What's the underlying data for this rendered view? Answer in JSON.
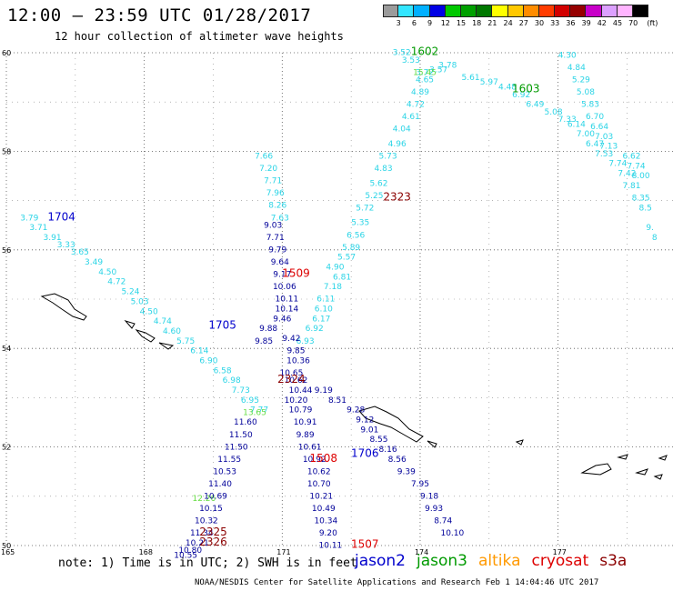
{
  "header": {
    "title": "12:00 – 23:59 UTC 01/28/2017",
    "subtitle": "12 hour collection of altimeter wave heights"
  },
  "color_scale": {
    "unit": "(ft)",
    "labels": [
      "3",
      "6",
      "9",
      "12",
      "15",
      "18",
      "21",
      "24",
      "27",
      "30",
      "33",
      "36",
      "39",
      "42",
      "45",
      "70"
    ],
    "colors": [
      "#9b9b9b",
      "#33e6ff",
      "#00b0ff",
      "#0000e6",
      "#00c800",
      "#00a000",
      "#007800",
      "#ffff00",
      "#ffc800",
      "#ff8c00",
      "#ff3c00",
      "#d20000",
      "#960000",
      "#c800c8",
      "#dca0ff",
      "#ffb4ff",
      "#000000"
    ]
  },
  "map": {
    "lat_labels": [
      "60",
      "58",
      "56",
      "54",
      "52",
      "50"
    ],
    "lon_labels": [
      "165",
      "168",
      "171",
      "174",
      "177"
    ]
  },
  "chart_data": {
    "type": "scatter",
    "title": "12:00 – 23:59 UTC 01/28/2017",
    "xlabel": "",
    "ylabel": "",
    "xlim": [
      165,
      179.5
    ],
    "ylim": [
      50,
      60
    ],
    "pass_labels": [
      {
        "id": "1602",
        "lon": 174.1,
        "lat": 59.95,
        "color": "#009a00"
      },
      {
        "id": "1603",
        "lon": 176.3,
        "lat": 59.2,
        "color": "#009a00"
      },
      {
        "id": "1704",
        "lon": 166.2,
        "lat": 56.6,
        "color": "#0000cc"
      },
      {
        "id": "1705",
        "lon": 169.7,
        "lat": 54.4,
        "color": "#0000cc"
      },
      {
        "id": "1706",
        "lon": 172.8,
        "lat": 51.8,
        "color": "#0000cc"
      },
      {
        "id": "1507",
        "lon": 172.8,
        "lat": 49.95,
        "color": "#dd0000"
      },
      {
        "id": "1508",
        "lon": 171.9,
        "lat": 51.7,
        "color": "#dd0000"
      },
      {
        "id": "1509",
        "lon": 171.3,
        "lat": 55.45,
        "color": "#dd0000"
      },
      {
        "id": "2323",
        "lon": 173.5,
        "lat": 57.0,
        "color": "#8b0000"
      },
      {
        "id": "2324",
        "lon": 171.2,
        "lat": 53.3,
        "color": "#8b0000"
      },
      {
        "id": "2325",
        "lon": 169.5,
        "lat": 50.2,
        "color": "#8b0000"
      },
      {
        "id": "2326",
        "lon": 169.5,
        "lat": 50.0,
        "color": "#8b0000"
      }
    ],
    "tracks": [
      {
        "name": "cyan-ne",
        "color": "#2bd4e6",
        "points": [
          [
            172.3,
            55.4,
            "6.81"
          ],
          [
            172.15,
            55.6,
            "4.90"
          ],
          [
            172.1,
            55.2,
            "7.18"
          ],
          [
            171.95,
            54.95,
            "6.11"
          ],
          [
            171.9,
            54.75,
            "6.10"
          ],
          [
            171.85,
            54.55,
            "6.17"
          ],
          [
            171.7,
            54.35,
            "6.92"
          ],
          [
            171.5,
            54.1,
            "6.93"
          ],
          [
            172.4,
            55.8,
            "5.57"
          ],
          [
            172.5,
            56.0,
            "5.89"
          ],
          [
            172.6,
            56.25,
            "6.56"
          ],
          [
            172.7,
            56.5,
            "5.35"
          ],
          [
            172.8,
            56.8,
            "5.72"
          ],
          [
            173.0,
            57.05,
            "5.25"
          ],
          [
            173.1,
            57.3,
            "5.62"
          ],
          [
            173.2,
            57.6,
            "4.83"
          ],
          [
            173.3,
            57.85,
            "5.73"
          ],
          [
            173.5,
            58.1,
            "4.96"
          ],
          [
            173.6,
            58.4,
            "4.04"
          ],
          [
            173.8,
            58.65,
            "4.61"
          ],
          [
            173.9,
            58.9,
            "4.72"
          ],
          [
            174.0,
            59.15,
            "4.89"
          ],
          [
            174.1,
            59.4,
            "4.65"
          ],
          [
            173.6,
            59.95,
            "3.52"
          ],
          [
            173.8,
            59.8,
            "3.53"
          ],
          [
            174.1,
            59.55,
            "3.72"
          ]
        ]
      },
      {
        "name": "cyan-east",
        "color": "#2bd4e6",
        "points": [
          [
            174.6,
            59.7,
            "3.78"
          ],
          [
            174.4,
            59.6,
            "3.57"
          ],
          [
            175.1,
            59.45,
            "5.61"
          ],
          [
            175.5,
            59.35,
            "5.97"
          ],
          [
            175.9,
            59.25,
            "4.48"
          ],
          [
            176.2,
            59.1,
            "6.92"
          ],
          [
            176.5,
            58.9,
            "6.49"
          ],
          [
            176.9,
            58.75,
            "5.08"
          ],
          [
            177.2,
            58.6,
            "7.33"
          ],
          [
            177.4,
            58.5,
            "6.14"
          ],
          [
            177.6,
            58.3,
            "7.00"
          ],
          [
            177.8,
            58.1,
            "6.47"
          ],
          [
            178.0,
            57.9,
            "7.53"
          ],
          [
            178.3,
            57.7,
            "7.74"
          ],
          [
            178.5,
            57.5,
            "7.42"
          ],
          [
            178.6,
            57.25,
            "7.81"
          ],
          [
            178.8,
            57.0,
            "8.35"
          ],
          [
            178.9,
            56.8,
            "8.5"
          ],
          [
            179.0,
            56.4,
            "9."
          ],
          [
            179.1,
            56.2,
            "8"
          ],
          [
            177.2,
            59.9,
            "4.30"
          ],
          [
            177.4,
            59.65,
            "4.84"
          ],
          [
            177.5,
            59.4,
            "5.29"
          ],
          [
            177.6,
            59.15,
            "5.08"
          ],
          [
            177.7,
            58.9,
            "5.83"
          ],
          [
            177.8,
            58.65,
            "6.70"
          ],
          [
            177.9,
            58.45,
            "6.64"
          ],
          [
            178.0,
            58.25,
            "7.03"
          ],
          [
            178.1,
            58.05,
            "7.13"
          ],
          [
            178.6,
            57.85,
            "6.62"
          ],
          [
            178.7,
            57.65,
            "7.74"
          ],
          [
            178.8,
            57.45,
            "8.00"
          ]
        ]
      },
      {
        "name": "cyan-west",
        "color": "#2bd4e6",
        "points": [
          [
            165.5,
            56.6,
            "3.79"
          ],
          [
            165.7,
            56.4,
            "3.71"
          ],
          [
            166.0,
            56.2,
            "3.91"
          ],
          [
            166.3,
            56.05,
            "3.33"
          ],
          [
            166.6,
            55.9,
            "3.65"
          ],
          [
            166.9,
            55.7,
            "3.49"
          ],
          [
            167.2,
            55.5,
            "4.50"
          ],
          [
            167.4,
            55.3,
            "4.72"
          ],
          [
            167.7,
            55.1,
            "5.24"
          ],
          [
            167.9,
            54.9,
            "5.03"
          ],
          [
            168.1,
            54.7,
            "4.50"
          ],
          [
            168.4,
            54.5,
            "4.74"
          ],
          [
            168.6,
            54.3,
            "4.60"
          ],
          [
            168.9,
            54.1,
            "5.75"
          ],
          [
            169.2,
            53.9,
            "6.14"
          ],
          [
            169.4,
            53.7,
            "6.90"
          ],
          [
            169.7,
            53.5,
            "6.58"
          ],
          [
            169.9,
            53.3,
            "6.98"
          ],
          [
            170.1,
            53.1,
            "7.73"
          ],
          [
            170.3,
            52.9,
            "6.95"
          ],
          [
            170.5,
            52.7,
            "7.77"
          ]
        ]
      },
      {
        "name": "cyan-north",
        "color": "#2bd4e6",
        "points": [
          [
            170.6,
            57.85,
            "7.66"
          ],
          [
            170.7,
            57.6,
            "7.20"
          ],
          [
            170.8,
            57.35,
            "7.71"
          ],
          [
            170.85,
            57.1,
            "7.96"
          ],
          [
            170.9,
            56.85,
            "8.26"
          ],
          [
            170.95,
            56.6,
            "7.63"
          ]
        ]
      },
      {
        "name": "green",
        "color": "#66dd44",
        "points": [
          [
            170.4,
            52.65,
            "13.65"
          ],
          [
            169.3,
            50.9,
            "12.26"
          ],
          [
            174.1,
            59.55,
            "15.45"
          ]
        ]
      },
      {
        "name": "blue-north",
        "color": "#000099",
        "points": [
          [
            170.8,
            56.45,
            "9.03"
          ],
          [
            170.85,
            56.2,
            "7.71"
          ],
          [
            170.9,
            55.95,
            "9.79"
          ],
          [
            170.95,
            55.7,
            "9.64"
          ],
          [
            171.0,
            55.45,
            "9.17"
          ],
          [
            171.05,
            55.2,
            "10.06"
          ],
          [
            171.1,
            54.95,
            "10.11"
          ],
          [
            171.1,
            54.75,
            "10.14"
          ],
          [
            171.0,
            54.55,
            "9.46"
          ],
          [
            170.7,
            54.35,
            "9.88"
          ],
          [
            170.6,
            54.1,
            "9.85"
          ],
          [
            171.2,
            54.15,
            "9.42"
          ],
          [
            171.3,
            53.9,
            "9.85"
          ],
          [
            171.35,
            53.7,
            "10.36"
          ],
          [
            171.2,
            53.45,
            "10.65"
          ],
          [
            171.3,
            53.3,
            "10.62"
          ],
          [
            171.4,
            53.1,
            "10.44"
          ],
          [
            171.3,
            52.9,
            "10.20"
          ],
          [
            171.4,
            52.7,
            "10.79"
          ],
          [
            171.5,
            52.45,
            "10.91"
          ],
          [
            171.5,
            52.2,
            "9.89"
          ],
          [
            171.6,
            51.95,
            "10.61"
          ],
          [
            171.7,
            51.7,
            "10.92"
          ],
          [
            171.8,
            51.45,
            "10.62"
          ],
          [
            171.8,
            51.2,
            "10.70"
          ],
          [
            171.85,
            50.95,
            "10.21"
          ],
          [
            171.9,
            50.7,
            "10.49"
          ],
          [
            171.95,
            50.45,
            "10.34"
          ],
          [
            172.0,
            50.2,
            "9.20"
          ],
          [
            172.05,
            49.95,
            "10.11"
          ]
        ]
      },
      {
        "name": "blue-south",
        "color": "#000099",
        "points": [
          [
            170.2,
            52.45,
            "11.60"
          ],
          [
            170.1,
            52.2,
            "11.50"
          ],
          [
            170.0,
            51.95,
            "11.50"
          ],
          [
            169.85,
            51.7,
            "11.55"
          ],
          [
            169.75,
            51.45,
            "10.53"
          ],
          [
            169.65,
            51.2,
            "11.40"
          ],
          [
            169.55,
            50.95,
            "10.69"
          ],
          [
            169.45,
            50.7,
            "10.15"
          ],
          [
            169.35,
            50.45,
            "10.32"
          ],
          [
            169.25,
            50.2,
            "11.34"
          ],
          [
            169.15,
            50.0,
            "10.21"
          ],
          [
            169.0,
            49.85,
            "10.80"
          ],
          [
            168.9,
            49.75,
            "10.55"
          ]
        ]
      },
      {
        "name": "blue-east",
        "color": "#000099",
        "points": [
          [
            171.9,
            53.1,
            "9.19"
          ],
          [
            172.2,
            52.9,
            "8.51"
          ],
          [
            172.6,
            52.7,
            "9.28"
          ],
          [
            172.8,
            52.5,
            "9.12"
          ],
          [
            172.9,
            52.3,
            "9.01"
          ],
          [
            173.1,
            52.1,
            "8.55"
          ],
          [
            173.3,
            51.9,
            "8.16"
          ],
          [
            173.5,
            51.7,
            "8.56"
          ],
          [
            173.7,
            51.45,
            "9.39"
          ],
          [
            174.0,
            51.2,
            "7.95"
          ],
          [
            174.2,
            50.95,
            "9.18"
          ],
          [
            174.3,
            50.7,
            "9.93"
          ],
          [
            174.5,
            50.45,
            "8.74"
          ],
          [
            174.7,
            50.2,
            "10.10"
          ]
        ]
      }
    ]
  },
  "footer": {
    "note": "note: 1) Time is in UTC; 2) SWH is in feet",
    "credit": "NOAA/NESDIS Center for Satellite Applications and Research   Feb  1 14:04:46 UTC 2017",
    "satellites": [
      {
        "name": "jason2",
        "color": "#0000cc"
      },
      {
        "name": "jason3",
        "color": "#009a00"
      },
      {
        "name": "altika",
        "color": "#ff9900"
      },
      {
        "name": "cryosat",
        "color": "#dd0000"
      },
      {
        "name": "s3a",
        "color": "#8b0000"
      }
    ]
  }
}
